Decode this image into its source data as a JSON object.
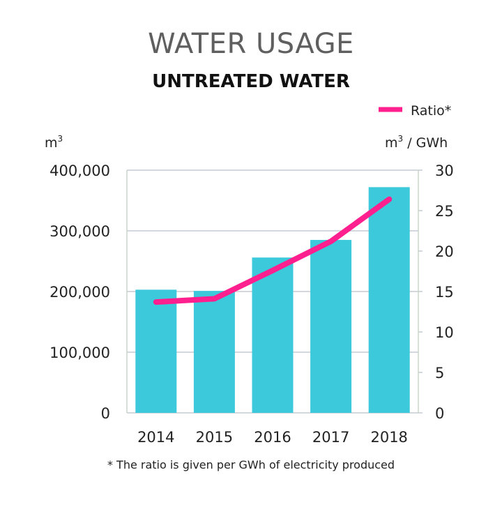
{
  "title": "WATER USAGE",
  "subtitle": "UNTREATED WATER",
  "footnote": "* The ratio is given per GWh of electricity produced",
  "chart_data": {
    "type": "bar",
    "categories": [
      "2014",
      "2015",
      "2016",
      "2017",
      "2018"
    ],
    "series": [
      {
        "type": "bar",
        "axis": "left",
        "values": [
          203000,
          201000,
          256000,
          285000,
          372000
        ],
        "color": "#3bc9db"
      },
      {
        "type": "line",
        "axis": "right",
        "name": "Ratio*",
        "values": [
          13.7,
          14.1,
          17.6,
          21.2,
          26.4
        ],
        "color": "#ff1f8e"
      }
    ],
    "ylabel_left": "m3",
    "ylabel_right": "m3 / GWh",
    "ylim_left": [
      0,
      400000
    ],
    "ylim_right": [
      0,
      30
    ],
    "yticks_left": [
      "0",
      "100,000",
      "200,000",
      "300,000",
      "400,000"
    ],
    "yticks_right": [
      "0",
      "5",
      "10",
      "15",
      "20",
      "25",
      "30"
    ],
    "grid": true,
    "legend_position": "top-right"
  }
}
